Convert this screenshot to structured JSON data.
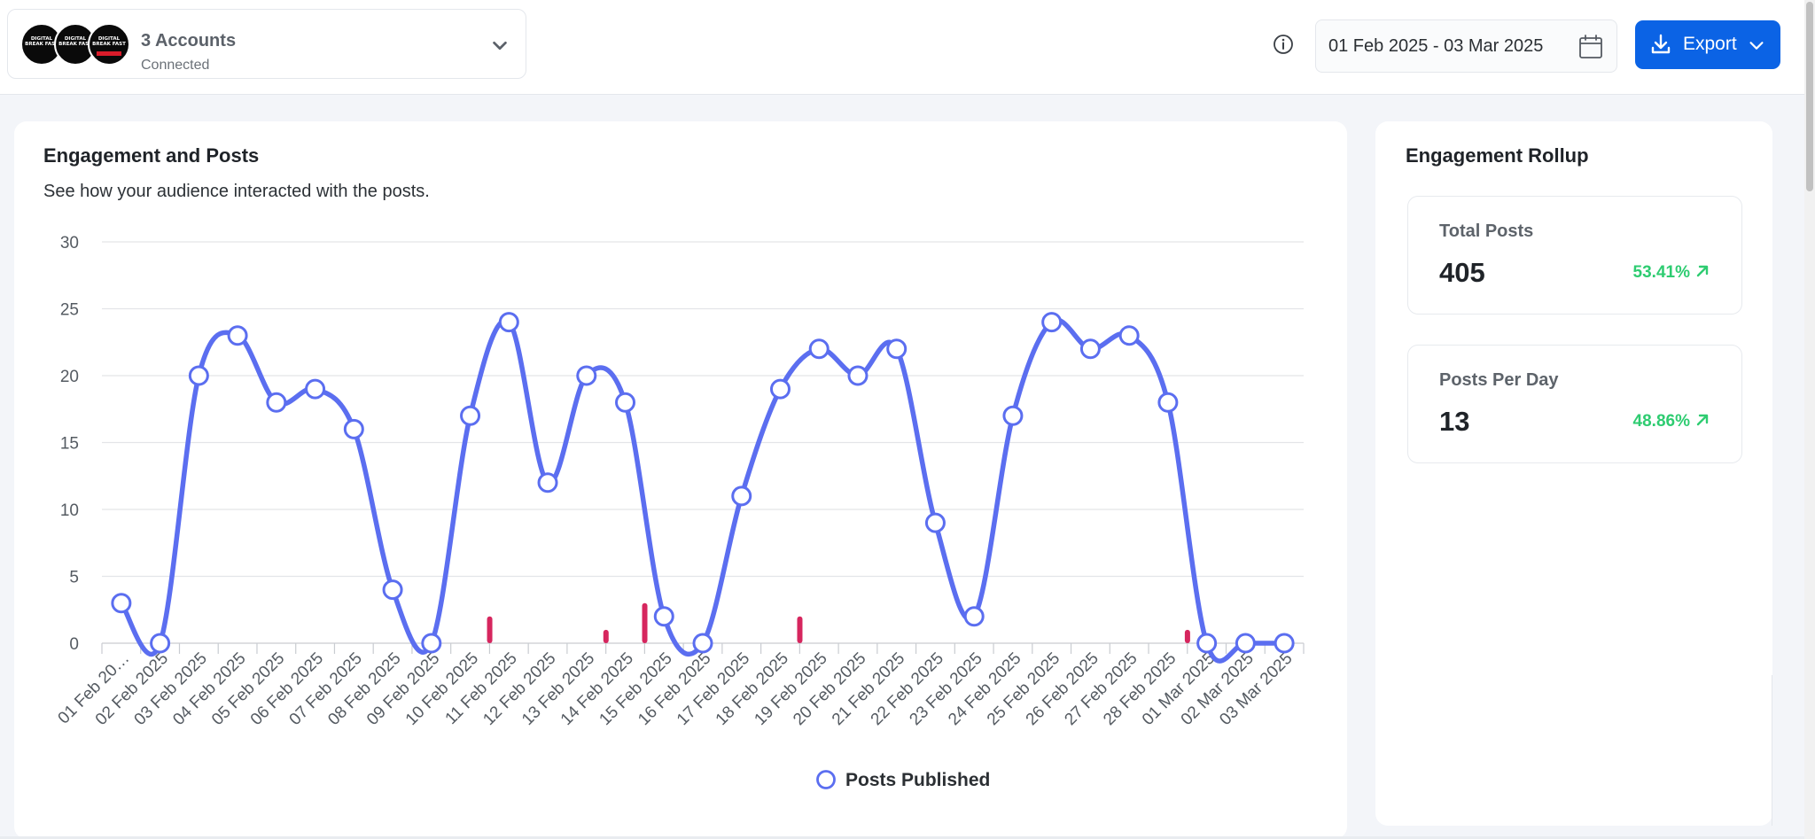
{
  "header": {
    "accounts": {
      "title": "3 Accounts",
      "status": "Connected",
      "avatars": [
        {
          "text": "DIGITAL BREAK FAST"
        },
        {
          "text": "DIGITAL BREAK FAST"
        },
        {
          "text": "DIGITAL BREAK FAST"
        }
      ]
    },
    "date_range": "01 Feb 2025 - 03 Mar 2025",
    "export_label": "Export",
    "icons": {
      "info": "info-icon",
      "calendar": "calendar-icon",
      "download": "download-icon",
      "chevron": "chevron-down-icon"
    }
  },
  "engagement_card": {
    "title": "Engagement and Posts",
    "subtitle": "See how your audience interacted with the posts.",
    "legend": "Posts Published"
  },
  "rollup": {
    "title": "Engagement Rollup",
    "stats": [
      {
        "label": "Total Posts",
        "value": "405",
        "change": "53.41%",
        "trend": "up"
      },
      {
        "label": "Posts Per Day",
        "value": "13",
        "change": "48.86%",
        "trend": "up"
      }
    ]
  },
  "colors": {
    "line": "#5b6ef0",
    "bars": "#d6265e",
    "accent": "#0b63e5",
    "positive": "#2ecc71"
  },
  "chart_data": {
    "type": "line",
    "title": "",
    "xlabel": "",
    "ylabel": "",
    "ylim": [
      0,
      30
    ],
    "yticks": [
      0,
      5,
      10,
      15,
      20,
      25,
      30
    ],
    "grid": true,
    "legend_position": "bottom",
    "categories": [
      "01 Feb 20…",
      "02 Feb 2025",
      "03 Feb 2025",
      "04 Feb 2025",
      "05 Feb 2025",
      "06 Feb 2025",
      "07 Feb 2025",
      "08 Feb 2025",
      "09 Feb 2025",
      "10 Feb 2025",
      "11 Feb 2025",
      "12 Feb 2025",
      "13 Feb 2025",
      "14 Feb 2025",
      "15 Feb 2025",
      "16 Feb 2025",
      "17 Feb 2025",
      "18 Feb 2025",
      "19 Feb 2025",
      "20 Feb 2025",
      "21 Feb 2025",
      "22 Feb 2025",
      "23 Feb 2025",
      "24 Feb 2025",
      "25 Feb 2025",
      "26 Feb 2025",
      "27 Feb 2025",
      "28 Feb 2025",
      "01 Mar 2025",
      "02 Mar 2025",
      "03 Mar 2025"
    ],
    "series": [
      {
        "name": "Posts Published",
        "type": "line",
        "values": [
          3,
          0,
          20,
          23,
          18,
          19,
          16,
          4,
          0,
          17,
          24,
          12,
          20,
          18,
          2,
          0,
          11,
          19,
          22,
          20,
          22,
          9,
          2,
          17,
          24,
          22,
          23,
          18,
          0,
          0,
          0
        ]
      },
      {
        "type": "bar",
        "values": [
          0,
          0,
          0,
          0,
          0,
          0,
          0,
          0,
          0,
          2,
          0,
          0,
          1,
          3,
          0,
          0,
          0,
          2,
          0,
          0,
          0,
          0,
          0,
          0,
          0,
          0,
          0,
          1,
          0,
          0,
          0
        ]
      }
    ]
  }
}
